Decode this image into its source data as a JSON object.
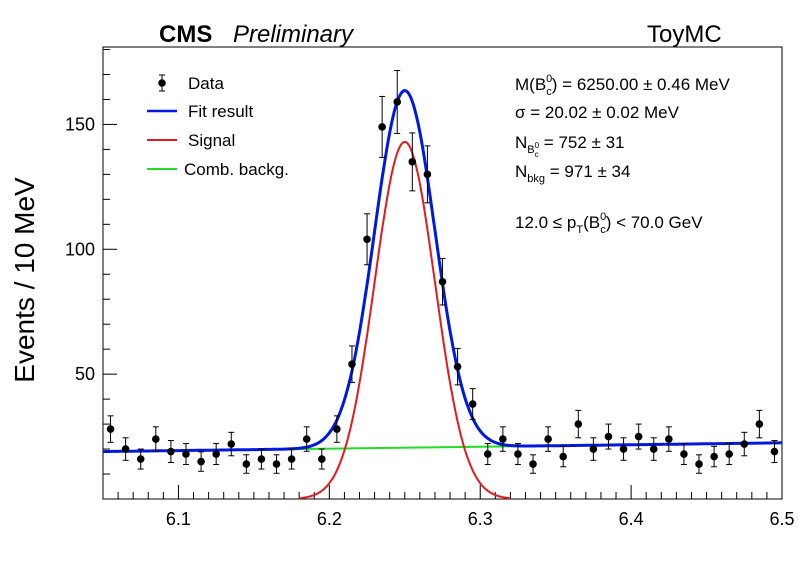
{
  "header": {
    "experiment": "CMS",
    "status": "Preliminary",
    "sample": "ToyMC"
  },
  "legend": {
    "entries": [
      {
        "key": "data",
        "label": "Data",
        "color": "#000000"
      },
      {
        "key": "fit",
        "label": "Fit result",
        "color": "#0019e0"
      },
      {
        "key": "signal",
        "label": "Signal",
        "color": "#e31a1c"
      },
      {
        "key": "background",
        "label": "Comb. backg.",
        "color": "#22dd22"
      }
    ]
  },
  "fit_params": {
    "mass": {
      "prefix": "M(B",
      "sup": "0",
      "sub": "c",
      "suffix": ") = 6250.00 ± 0.46 MeV"
    },
    "sigma": {
      "symbol": "σ",
      "suffix": " = 20.02 ± 0.02 MeV"
    },
    "n_sig": {
      "prefix": "N",
      "sub": "B",
      "subsub": "c",
      "subsup": "0",
      "suffix": " = 752 ± 31"
    },
    "n_bkg": {
      "prefix": "N",
      "sub": "bkg",
      "suffix": " = 971 ± 34"
    },
    "pt_range": {
      "prefix": "12.0 ≤ p",
      "sub": "T",
      "mid": "(B",
      "sup": "0",
      "sub2": "c",
      "suffix": ") < 70.0 GeV"
    }
  },
  "chart_data": {
    "type": "scatter",
    "ylabel": "Events / 10 MeV",
    "xlabel": "",
    "xlim": [
      6.05,
      6.5
    ],
    "ylim": [
      0,
      181
    ],
    "xticks": [
      6.1,
      6.2,
      6.3,
      6.4,
      6.5
    ],
    "xtick_labels": [
      "6.1",
      "6.2",
      "6.3",
      "6.4",
      "6.5"
    ],
    "yticks": [
      50,
      100,
      150
    ],
    "ytick_labels": [
      "50",
      "100",
      "150"
    ],
    "grid": false,
    "legend_position": "top-left",
    "data_points": {
      "name": "Data",
      "x": [
        6.055,
        6.065,
        6.075,
        6.085,
        6.095,
        6.105,
        6.115,
        6.125,
        6.135,
        6.145,
        6.155,
        6.165,
        6.175,
        6.185,
        6.195,
        6.205,
        6.215,
        6.225,
        6.235,
        6.245,
        6.255,
        6.265,
        6.275,
        6.285,
        6.295,
        6.305,
        6.315,
        6.325,
        6.335,
        6.345,
        6.355,
        6.365,
        6.375,
        6.385,
        6.395,
        6.405,
        6.415,
        6.425,
        6.435,
        6.445,
        6.455,
        6.465,
        6.475,
        6.485,
        6.495
      ],
      "y": [
        28,
        20,
        16,
        24,
        19,
        18,
        15,
        18,
        22,
        14,
        16,
        14,
        16,
        24,
        16,
        28,
        54,
        104,
        149,
        159,
        135,
        130,
        87,
        53,
        38,
        18,
        24,
        18,
        14,
        24,
        17,
        30,
        20,
        25,
        20,
        25,
        20,
        24,
        18,
        14,
        17,
        18,
        22,
        30,
        19
      ],
      "yerr": [
        5.3,
        4.5,
        4.0,
        4.9,
        4.4,
        4.2,
        3.9,
        4.2,
        4.7,
        3.7,
        4.0,
        3.7,
        4.0,
        4.9,
        4.0,
        5.3,
        7.3,
        10.2,
        12.2,
        12.6,
        11.6,
        11.4,
        9.3,
        7.3,
        6.2,
        4.2,
        4.9,
        4.2,
        3.7,
        4.9,
        4.1,
        5.5,
        4.5,
        5.0,
        4.5,
        5.0,
        4.5,
        4.9,
        4.2,
        3.7,
        4.1,
        4.2,
        4.7,
        5.5,
        4.4
      ]
    },
    "background_line": {
      "name": "Comb. backg.",
      "x": [
        6.05,
        6.5
      ],
      "y": [
        19,
        22.5
      ]
    },
    "signal_curve": {
      "name": "Signal",
      "mean": 6.25,
      "sigma": 0.02002,
      "peak": 143,
      "x_range": [
        6.18,
        6.32
      ]
    },
    "fit_curve": {
      "name": "Fit result",
      "description": "Signal + Comb. backg."
    }
  }
}
